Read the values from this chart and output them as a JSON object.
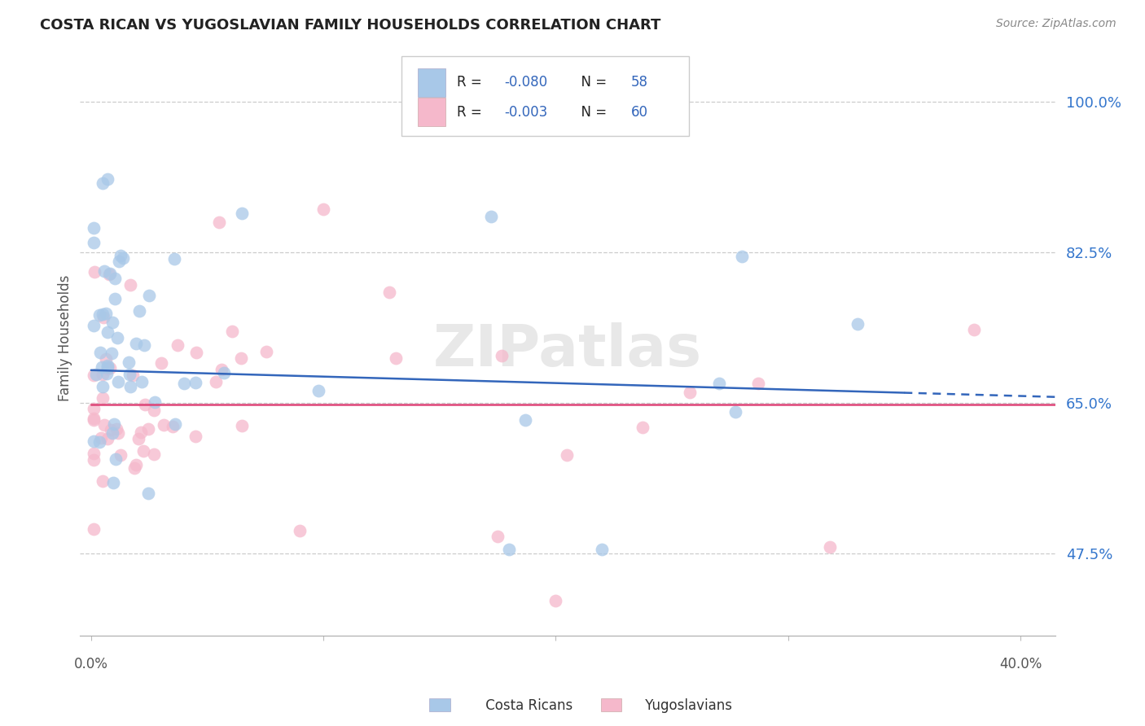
{
  "title": "COSTA RICAN VS YUGOSLAVIAN FAMILY HOUSEHOLDS CORRELATION CHART",
  "source": "Source: ZipAtlas.com",
  "ylabel": "Family Households",
  "cr_color": "#a8c8e8",
  "yu_color": "#f5b8cb",
  "cr_line_color": "#3366bb",
  "yu_line_color": "#dd4477",
  "watermark": "ZIPatlas",
  "xlim_min": 0.0,
  "xlim_max": 0.4,
  "ylim_min": 0.38,
  "ylim_max": 1.07,
  "ytick_vals": [
    0.475,
    0.65,
    0.825,
    1.0
  ],
  "ytick_labels": [
    "47.5%",
    "65.0%",
    "82.5%",
    "100.0%"
  ],
  "cr_trend_y0": 0.688,
  "cr_trend_y1": 0.658,
  "yu_trend_y": 0.648,
  "legend_R_color": "#3366bb",
  "legend_text_color": "#222222",
  "bottom_cr_label": "Costa Ricans",
  "bottom_yu_label": "Yugoslavians"
}
